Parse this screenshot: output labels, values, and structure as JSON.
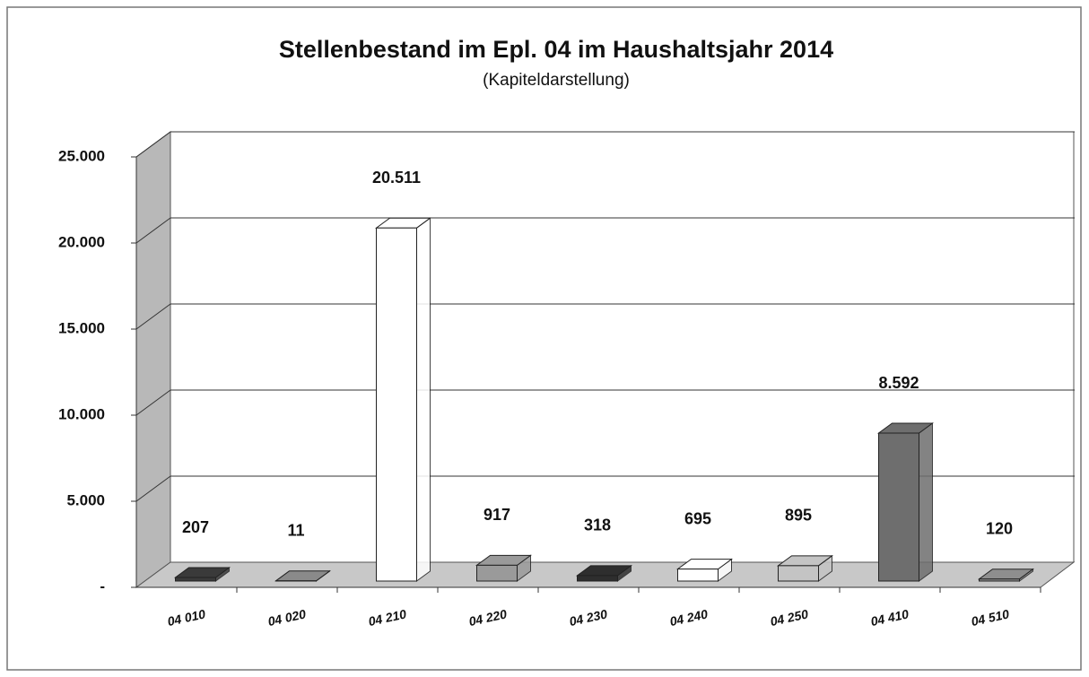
{
  "chart_data": {
    "type": "bar3d",
    "title": "Stellenbestand im Epl. 04 im Haushaltsjahr 2014",
    "subtitle": "(Kapiteldarstellung)",
    "categories": [
      "04 010",
      "04 020",
      "04 210",
      "04 220",
      "04 230",
      "04 240",
      "04 250",
      "04 410",
      "04 510"
    ],
    "values": [
      207,
      11,
      20511,
      917,
      318,
      695,
      895,
      8592,
      120
    ],
    "value_labels": [
      "207",
      "11",
      "20.511",
      "917",
      "318",
      "695",
      "895",
      "8.592",
      "120"
    ],
    "colors": [
      "#3a3a3a",
      "#8a8a8a",
      "#ffffff",
      "#9a9a9a",
      "#2e2e2e",
      "#ffffff",
      "#c4c4c4",
      "#6e6e6e",
      "#8e8e8e"
    ],
    "ylim": [
      0,
      25000
    ],
    "yticks": [
      {
        "value": 0,
        "label": "-"
      },
      {
        "value": 5000,
        "label": "5.000"
      },
      {
        "value": 10000,
        "label": "10.000"
      },
      {
        "value": 15000,
        "label": "15.000"
      },
      {
        "value": 20000,
        "label": "20.000"
      },
      {
        "value": 25000,
        "label": "25.000"
      }
    ],
    "grid": true
  }
}
